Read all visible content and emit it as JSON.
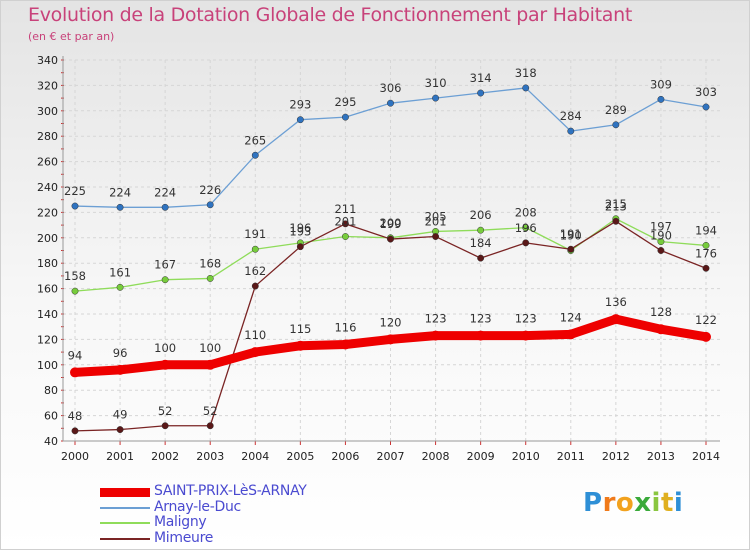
{
  "chart_data": {
    "type": "line",
    "title": "Evolution de la Dotation Globale de Fonctionnement par Habitant",
    "subtitle": "(en € et par an)",
    "xlabel": "",
    "ylabel": "",
    "x": [
      "2000",
      "2001",
      "2002",
      "2003",
      "2004",
      "2005",
      "2006",
      "2007",
      "2008",
      "2009",
      "2010",
      "2011",
      "2012",
      "2013",
      "2014"
    ],
    "ylim": [
      40,
      340
    ],
    "yticks": [
      40,
      60,
      80,
      100,
      120,
      140,
      160,
      180,
      200,
      220,
      240,
      260,
      280,
      300,
      320,
      340
    ],
    "grid": true,
    "legend_position": "bottom-left",
    "series": [
      {
        "name": "SAINT-PRIX-LèS-ARNAY",
        "color": "#ee0000",
        "marker": "#ee0000",
        "width": 9,
        "values": [
          94,
          96,
          100,
          100,
          110,
          115,
          116,
          120,
          123,
          123,
          123,
          124,
          136,
          128,
          122
        ]
      },
      {
        "name": "Arnay-le-Duc",
        "color": "#6c9fd4",
        "marker": "#2f73c0",
        "width": 1.3,
        "values": [
          225,
          224,
          224,
          226,
          265,
          293,
          295,
          306,
          310,
          314,
          318,
          284,
          289,
          309,
          303
        ]
      },
      {
        "name": "Maligny",
        "color": "#8fdc5a",
        "marker": "#77cc3c",
        "width": 1.3,
        "values": [
          158,
          161,
          167,
          168,
          191,
          196,
          201,
          200,
          205,
          206,
          208,
          190,
          215,
          197,
          194
        ]
      },
      {
        "name": "Mimeure",
        "color": "#7a2424",
        "marker": "#5a1818",
        "width": 1.3,
        "values": [
          48,
          49,
          52,
          52,
          162,
          193,
          211,
          199,
          201,
          184,
          196,
          191,
          213,
          190,
          176
        ]
      }
    ]
  },
  "logo": {
    "letters": [
      "P",
      "r",
      "o",
      "x",
      "i",
      "t",
      "i"
    ],
    "colors": [
      "#2e8fd6",
      "#f07a1a",
      "#f2a21e",
      "#3aaa3a",
      "#8ac640",
      "#e0b020",
      "#2e8fd6"
    ]
  }
}
